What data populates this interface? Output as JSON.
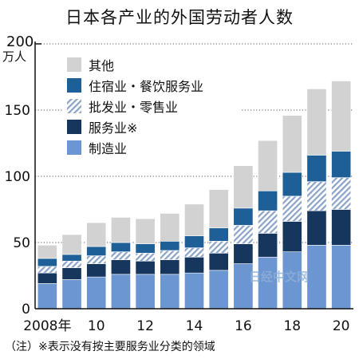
{
  "colors": {
    "background": "#ffffff",
    "grid": "#555555",
    "axis": "#111111",
    "text": "#111111"
  },
  "chart_data": {
    "type": "bar",
    "stacked": true,
    "title": "日本各产业的外国劳动者人数",
    "ylabel": "万人",
    "ylim": [
      0,
      200
    ],
    "yticks": [
      0,
      50,
      100,
      150,
      200
    ],
    "grid": true,
    "legend_position": "top-left",
    "categories": [
      "2008",
      "2009",
      "2010",
      "2011",
      "2012",
      "2013",
      "2014",
      "2015",
      "2016",
      "2017",
      "2018",
      "2019",
      "2020"
    ],
    "xtick_labels": [
      "2008年",
      "",
      "10",
      "",
      "12",
      "",
      "14",
      "",
      "16",
      "",
      "18",
      "",
      "20"
    ],
    "series": [
      {
        "name": "制造业",
        "color": "#6b96d2",
        "pattern": "solid",
        "values": [
          19,
          22,
          24,
          26,
          26,
          26,
          27,
          29,
          34,
          39,
          43,
          48,
          48
        ]
      },
      {
        "name": "服务业※",
        "color": "#17365e",
        "pattern": "solid",
        "values": [
          8,
          9,
          10,
          11,
          10,
          11,
          12,
          13,
          15,
          18,
          23,
          26,
          27
        ]
      },
      {
        "name": "批发业・零售业",
        "color": "#8aa3c6",
        "pattern": "hatch",
        "values": [
          5,
          5,
          6,
          6,
          6,
          7,
          7,
          9,
          14,
          17,
          19,
          22,
          24
        ]
      },
      {
        "name": "住宿业・餐饮服务业",
        "color": "#1d5f96",
        "pattern": "solid",
        "values": [
          6,
          5,
          7,
          7,
          7,
          7,
          9,
          10,
          13,
          15,
          18,
          20,
          20
        ]
      },
      {
        "name": "其他",
        "color": "#d2d2d2",
        "pattern": "solid",
        "values": [
          10,
          15,
          18,
          19,
          19,
          21,
          24,
          29,
          32,
          38,
          43,
          50,
          53
        ]
      }
    ],
    "legend_order": [
      "其他",
      "住宿业・餐饮服务业",
      "批发业・零售业",
      "服务业※",
      "制造业"
    ]
  },
  "watermark": "日经中文网",
  "footnote": "（注）※表示没有按主要服务业分类的领域"
}
